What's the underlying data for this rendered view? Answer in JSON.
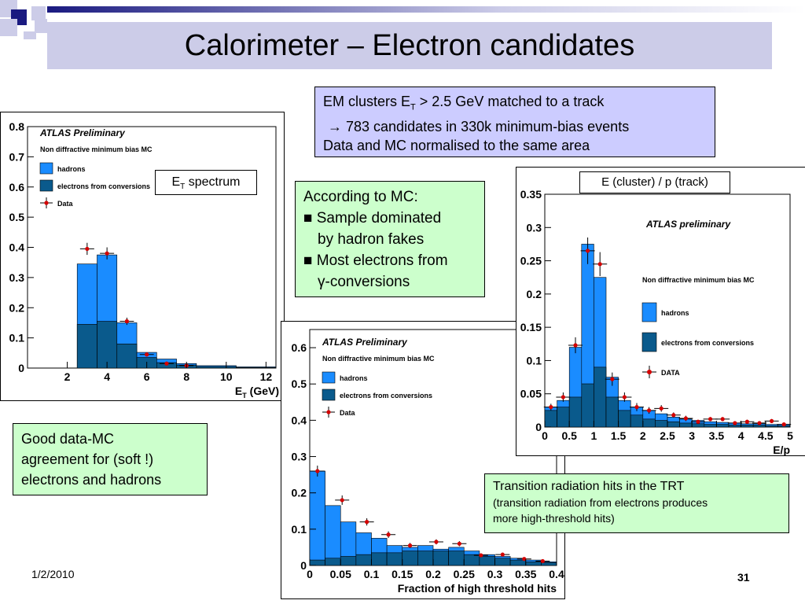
{
  "slide": {
    "title": "Calorimeter – Electron candidates",
    "date": "1/2/2010",
    "page_number": "31",
    "colors": {
      "title_bar": "#cccce8",
      "hadrons": "#1a8cff",
      "electrons": "#0a5a8c",
      "data": "#d40000"
    }
  },
  "boxes": {
    "em_clusters": {
      "line1_pre": "EM clusters E",
      "line1_sub": "T",
      "line1_post": " > 2.5 GeV matched to a track",
      "line2": "→ 783 candidates in 330k minimum-bias events",
      "line3": "Data and MC normalised to the same area"
    },
    "according": {
      "line1": "According to MC:",
      "line2": "■ Sample dominated",
      "line3": "by hadron fakes",
      "line4": "■ Most electrons from",
      "line5": "γ-conversions"
    },
    "good_data": {
      "line1": "Good data-MC",
      "line2": "agreement for (soft !)",
      "line3": "electrons and hadrons"
    },
    "trt": {
      "line1": "Transition radiation hits in the TRT",
      "line2": "(transition radiation from electrons produces",
      "line3": "more high-threshold hits)"
    },
    "et_spectrum": {
      "pre": "E",
      "sub": "T",
      "post": " spectrum"
    },
    "ep_label": "E (cluster) / p (track)"
  },
  "chart_data": [
    {
      "id": "et",
      "type": "bar",
      "title": "ATLAS Preliminary",
      "subtitle": "Non diffractive minimum bias MC",
      "xlabel_pre": "E",
      "xlabel_sub": "T",
      "xlabel_post": " (GeV)",
      "xlim": [
        0,
        12.5
      ],
      "ylim": [
        0,
        0.8
      ],
      "xticks": [
        "2",
        "4",
        "6",
        "8",
        "10",
        "12"
      ],
      "yticks": [
        "0",
        "0.1",
        "0.2",
        "0.3",
        "0.4",
        "0.5",
        "0.6",
        "0.7",
        "0.8"
      ],
      "bin_edges": [
        2.5,
        3.5,
        4.5,
        5.5,
        6.5,
        7.5,
        8.5,
        10.5,
        12.5
      ],
      "series": [
        {
          "name": "hadrons",
          "values": [
            0.345,
            0.375,
            0.15,
            0.052,
            0.03,
            0.015,
            0.008,
            0.004
          ]
        },
        {
          "name": "electrons from conversions",
          "values": [
            0.145,
            0.155,
            0.08,
            0.035,
            0.018,
            0.01,
            0.005,
            0.002
          ]
        }
      ],
      "data": {
        "name": "Data",
        "x": [
          3,
          4,
          5,
          6,
          7,
          8
        ],
        "y": [
          0.395,
          0.38,
          0.155,
          0.045,
          0.015,
          0.008
        ],
        "err": [
          0.02,
          0.02,
          0.012,
          0.006,
          0.004,
          0.003
        ]
      },
      "legend": "top-left"
    },
    {
      "id": "trt",
      "type": "bar",
      "title": "ATLAS Preliminary",
      "subtitle": "Non diffractive minimum bias MC",
      "xlabel": "Fraction of high threshold hits",
      "xlim": [
        0,
        0.4
      ],
      "ylim": [
        0,
        0.65
      ],
      "xticks": [
        "0",
        "0.05",
        "0.1",
        "0.15",
        "0.2",
        "0.25",
        "0.3",
        "0.35",
        "0.4"
      ],
      "yticks": [
        "0",
        "0.1",
        "0.2",
        "0.3",
        "0.4",
        "0.5",
        "0.6"
      ],
      "bin_edges": [
        0,
        0.025,
        0.05,
        0.075,
        0.1,
        0.125,
        0.15,
        0.175,
        0.2,
        0.225,
        0.25,
        0.275,
        0.3,
        0.325,
        0.35,
        0.375,
        0.4
      ],
      "series": [
        {
          "name": "hadrons",
          "values": [
            0.26,
            0.165,
            0.12,
            0.09,
            0.075,
            0.055,
            0.05,
            0.055,
            0.045,
            0.05,
            0.04,
            0.03,
            0.025,
            0.02,
            0.015,
            0.01
          ]
        },
        {
          "name": "electrons from conversions",
          "values": [
            0.015,
            0.02,
            0.025,
            0.03,
            0.035,
            0.035,
            0.04,
            0.04,
            0.04,
            0.04,
            0.03,
            0.025,
            0.02,
            0.015,
            0.01,
            0.008
          ]
        }
      ],
      "data": {
        "name": "Data",
        "x": [
          0.0125,
          0.0525,
          0.0925,
          0.1275,
          0.1625,
          0.205,
          0.2425,
          0.2775,
          0.3125,
          0.3475,
          0.3775
        ],
        "y": [
          0.26,
          0.18,
          0.12,
          0.085,
          0.055,
          0.065,
          0.06,
          0.028,
          0.03,
          0.018,
          0.012
        ],
        "err": [
          0.015,
          0.013,
          0.01,
          0.009,
          0.007,
          0.007,
          0.007,
          0.005,
          0.005,
          0.004,
          0.003
        ]
      },
      "legend": "top-left"
    },
    {
      "id": "ep",
      "type": "bar",
      "title": "ATLAS preliminary",
      "subtitle": "Non diffractive minimum bias MC",
      "xlabel": "E/p",
      "xlim": [
        0,
        5
      ],
      "ylim": [
        0,
        0.35
      ],
      "xticks": [
        "0",
        "0.5",
        "1",
        "1.5",
        "2",
        "2.5",
        "3",
        "3.5",
        "4",
        "4.5",
        "5"
      ],
      "yticks": [
        "0",
        "0.05",
        "0.1",
        "0.15",
        "0.2",
        "0.25",
        "0.3",
        "0.35"
      ],
      "bin_edges": [
        0,
        0.25,
        0.5,
        0.75,
        1.0,
        1.25,
        1.5,
        1.75,
        2.0,
        2.25,
        2.5,
        2.75,
        3.0,
        3.25,
        3.5,
        3.75,
        4.0,
        4.25,
        4.5,
        4.75,
        5.0
      ],
      "series": [
        {
          "name": "hadrons",
          "values": [
            0.03,
            0.04,
            0.12,
            0.275,
            0.225,
            0.075,
            0.04,
            0.03,
            0.025,
            0.02,
            0.015,
            0.012,
            0.01,
            0.008,
            0.007,
            0.006,
            0.005,
            0.005,
            0.004,
            0.004
          ]
        },
        {
          "name": "electrons from conversions",
          "values": [
            0.025,
            0.03,
            0.045,
            0.065,
            0.09,
            0.045,
            0.025,
            0.018,
            0.012,
            0.01,
            0.008,
            0.006,
            0.005,
            0.004,
            0.004,
            0.003,
            0.003,
            0.003,
            0.002,
            0.002
          ]
        }
      ],
      "data": {
        "name": "DATA",
        "x": [
          0.125,
          0.375,
          0.625,
          0.875,
          1.125,
          1.375,
          1.625,
          1.875,
          2.125,
          2.375,
          2.625,
          2.875,
          3.125,
          3.375,
          3.625,
          3.875,
          4.125,
          4.375,
          4.625,
          4.875
        ],
        "y": [
          0.03,
          0.045,
          0.123,
          0.265,
          0.245,
          0.072,
          0.045,
          0.03,
          0.025,
          0.028,
          0.018,
          0.013,
          0.008,
          0.012,
          0.012,
          0.006,
          0.008,
          0.006,
          0.009,
          0.004
        ],
        "err": [
          0.005,
          0.007,
          0.012,
          0.02,
          0.018,
          0.01,
          0.007,
          0.006,
          0.005,
          0.005,
          0.004,
          0.004,
          0.003,
          0.003,
          0.003,
          0.002,
          0.003,
          0.002,
          0.003,
          0.002
        ]
      },
      "legend": "right"
    }
  ]
}
